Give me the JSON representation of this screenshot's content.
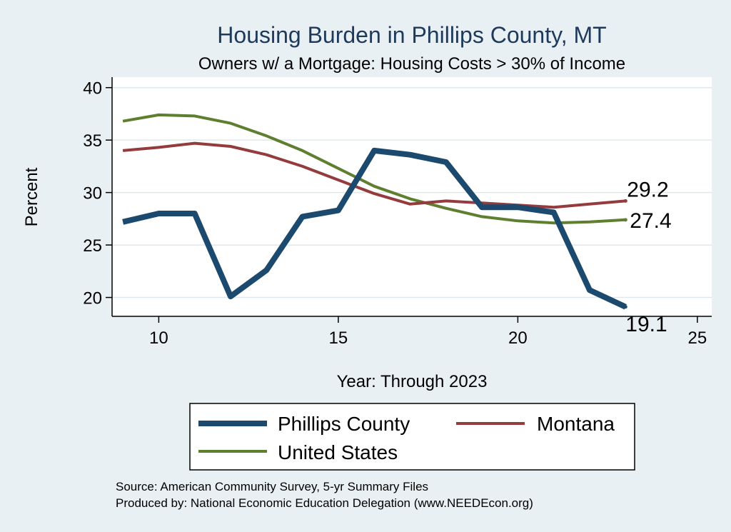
{
  "chart_data": {
    "type": "line",
    "title": "Housing Burden in Phillips County, MT",
    "subtitle": "Owners w/ a Mortgage: Housing Costs > 30% of Income",
    "xlabel": "Year: Through 2023",
    "ylabel": "Percent",
    "xlim": [
      8.7,
      25.4
    ],
    "ylim": [
      18.2,
      41
    ],
    "xticks": [
      10,
      15,
      20,
      25
    ],
    "yticks": [
      20,
      25,
      30,
      35,
      40
    ],
    "x": [
      9,
      10,
      11,
      12,
      13,
      14,
      15,
      16,
      17,
      18,
      19,
      20,
      21,
      22,
      23
    ],
    "series": [
      {
        "name": "Phillips County",
        "color": "#1b4a6e",
        "width": 8,
        "values": [
          27.2,
          28.0,
          28.0,
          20.1,
          22.6,
          27.7,
          28.3,
          34.0,
          33.6,
          32.9,
          28.6,
          28.6,
          28.1,
          20.7,
          19.1
        ],
        "end_label": "19.1"
      },
      {
        "name": "Montana",
        "color": "#943b3e",
        "width": 4,
        "values": [
          34.0,
          34.3,
          34.7,
          34.4,
          33.6,
          32.5,
          31.2,
          29.9,
          28.9,
          29.2,
          29.0,
          28.8,
          28.6,
          28.9,
          29.2
        ],
        "end_label": "29.2"
      },
      {
        "name": "United States",
        "color": "#5e7f2f",
        "width": 4,
        "values": [
          36.8,
          37.4,
          37.3,
          36.6,
          35.4,
          34.0,
          32.3,
          30.6,
          29.4,
          28.5,
          27.7,
          27.3,
          27.1,
          27.2,
          27.4
        ],
        "end_label": "27.4"
      }
    ]
  },
  "legend": {
    "items": [
      "Phillips County",
      "Montana",
      "United States"
    ]
  },
  "source": {
    "line1": "Source: American Community Survey, 5-yr Summary Files",
    "line2": "Produced by: National Economic Education Delegation (www.NEEDEcon.org)"
  }
}
